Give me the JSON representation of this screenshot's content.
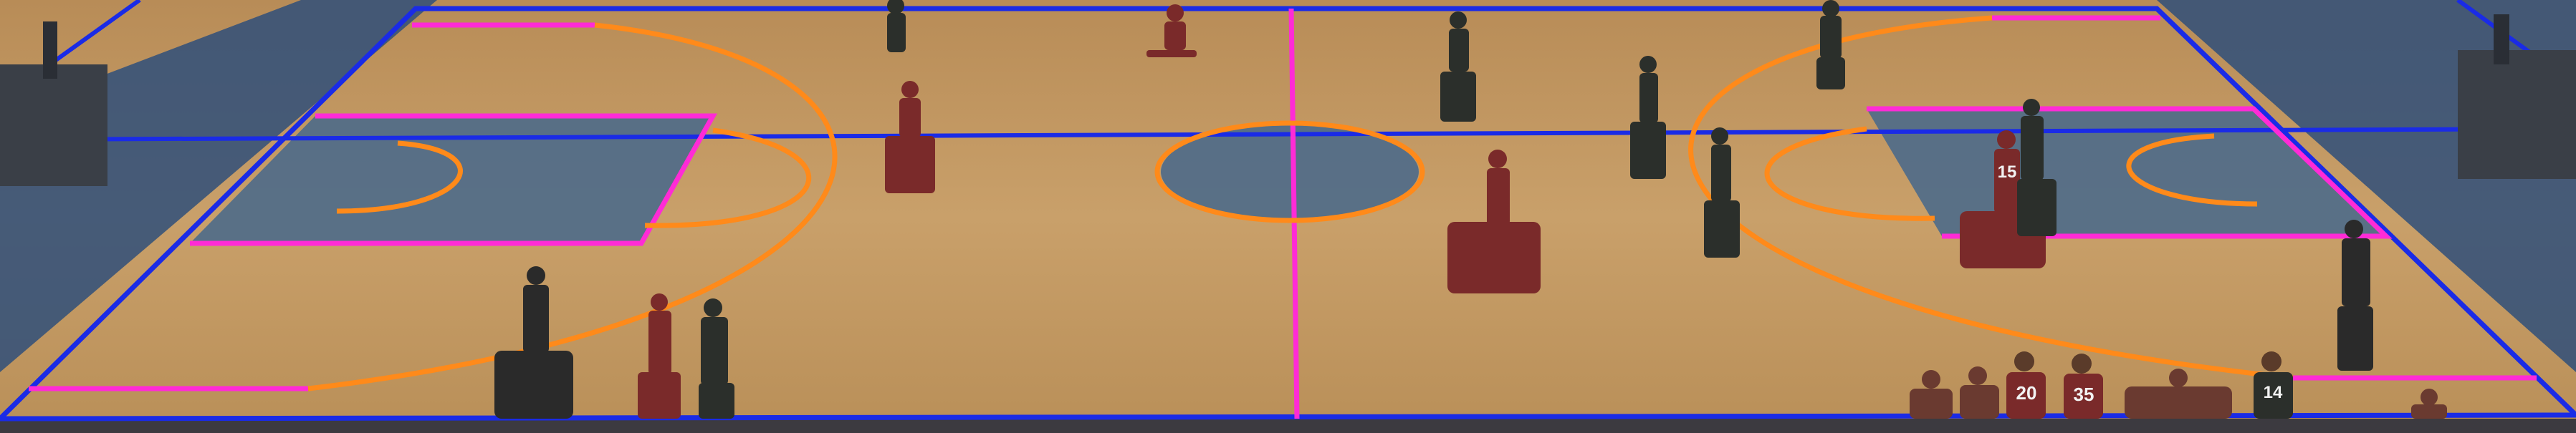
{
  "scene": {
    "description_label": "",
    "colors": {
      "floor": "#c59a62",
      "floor_dark": "#a67b47",
      "paint_blue": "#4d6a8a",
      "apron_blue": "#2f4f7a",
      "overlay_blue": "#1a2be6",
      "overlay_magenta": "#ff2bd6",
      "overlay_orange": "#ff8a1a",
      "team_red": "#7a2a2a",
      "team_dark": "#2b2f2b",
      "referee": "#2a2a2a"
    },
    "jersey_numbers": [
      "15",
      "20",
      "35",
      "14"
    ]
  }
}
